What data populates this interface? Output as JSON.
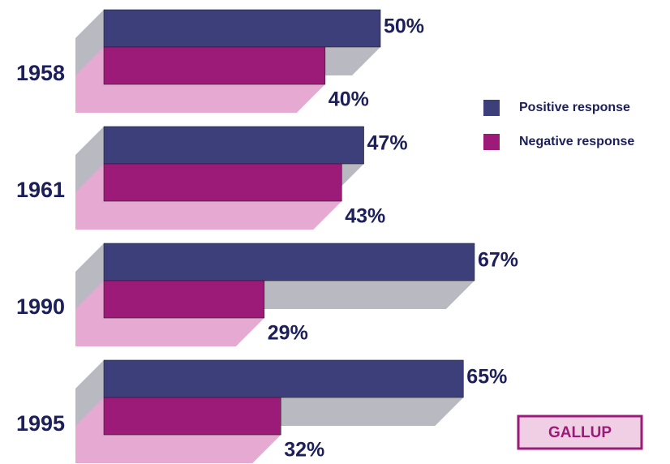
{
  "chart_data": {
    "type": "bar3d",
    "categories": [
      "1958",
      "1961",
      "1990",
      "1995"
    ],
    "series": [
      {
        "name": "Positive response",
        "color": "#3d3f7a",
        "values": [
          50,
          47,
          67,
          65
        ],
        "value_labels": [
          "50%",
          "47%",
          "67%",
          "65%"
        ]
      },
      {
        "name": "Negative response",
        "color": "#9c1a78",
        "values": [
          40,
          43,
          29,
          32
        ],
        "value_labels": [
          "40%",
          "43%",
          "29%",
          "32%"
        ]
      }
    ],
    "legend": "right",
    "source": "GALLUP"
  }
}
